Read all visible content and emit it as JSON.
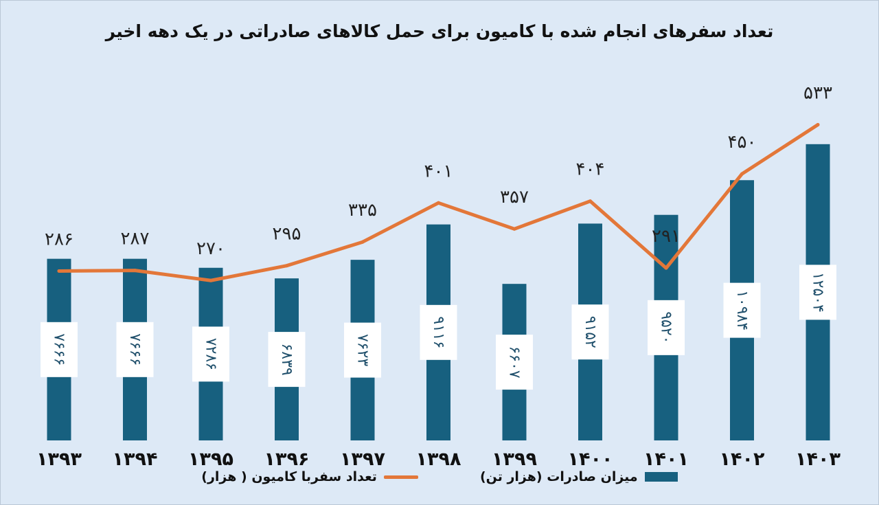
{
  "chart_data": {
    "type": "bar",
    "title": "تعداد سفرهای انجام شده با کامیون برای حمل کالاهای صادراتی در یک دهه اخیر",
    "categories": [
      "۱۳۹۳",
      "۱۳۹۴",
      "۱۳۹۵",
      "۱۳۹۶",
      "۱۳۹۷",
      "۱۳۹۸",
      "۱۳۹۹",
      "۱۴۰۰",
      "۱۴۰۱",
      "۱۴۰۲",
      "۱۴۰۳"
    ],
    "series": [
      {
        "name": "میزان صادرات (هزار تن)",
        "type": "bar",
        "color": "#17607f",
        "values": [
          7666,
          7666,
          7286,
          6839,
          7623,
          9116,
          6607,
          9152,
          9520,
          10984,
          12504
        ],
        "labels": [
          "۷۶۶۶",
          "۷۶۶۶",
          "۷۲۸۶",
          "۶۸۳۹",
          "۷۶۲۳",
          "۹۱۱۶",
          "۶۶۰۷",
          "۹۱۵۲",
          "۹۵۲۰",
          "۱۰۹۸۴",
          "۱۲۵۰۴"
        ]
      },
      {
        "name": "تعداد سفربا کامیون ( هزار)",
        "type": "line",
        "color": "#e37739",
        "values": [
          286,
          287,
          270,
          295,
          335,
          401,
          357,
          404,
          291,
          450,
          533
        ],
        "labels": [
          "۲۸۶",
          "۲۸۷",
          "۲۷۰",
          "۲۹۵",
          "۳۳۵",
          "۴۰۱",
          "۳۵۷",
          "۴۰۴",
          "۲۹۱",
          "۴۵۰",
          "۵۳۳"
        ]
      }
    ],
    "bar_axis_range": [
      0,
      14500
    ],
    "line_axis_range": [
      0,
      580
    ],
    "grid": false,
    "legend_position": "bottom"
  }
}
